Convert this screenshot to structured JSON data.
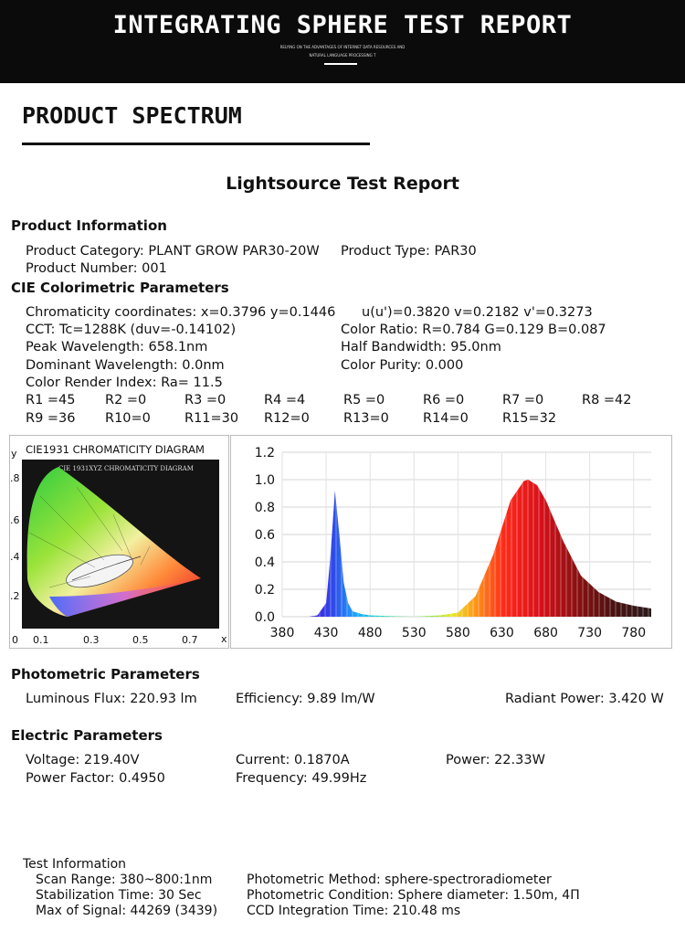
{
  "banner": {
    "title": "INTEGRATING SPHERE TEST REPORT",
    "subtitle_line1": "RELYING ON THE ADVANTAGES OF INTERNET DATA RESOURCES AND",
    "subtitle_line2": "NATURAL LANGUAGE PROCESSING T"
  },
  "section_title": "PRODUCT SPECTRUM",
  "report_title": "Lightsource Test Report",
  "product_info": {
    "heading": "Product Information",
    "category": "Product Category: PLANT GROW PAR30-20W",
    "type": "Product Type: PAR30",
    "number": "Product Number: 001"
  },
  "cie": {
    "heading": "CIE Colorimetric Parameters",
    "chromaticity": "Chromaticity coordinates: x=0.3796 y=0.1446",
    "uv": "u(u')=0.3820 v=0.2182 v'=0.3273",
    "cct": "CCT: Tc=1288K (duv=-0.14102)",
    "color_ratio": "Color Ratio: R=0.784  G=0.129  B=0.087",
    "peak": "Peak Wavelength: 658.1nm",
    "half_bandwidth": "Half Bandwidth: 95.0nm",
    "dominant": "Dominant Wavelength: 0.0nm",
    "purity": "Color Purity: 0.000",
    "cri": "Color Render Index: Ra= 11.5",
    "r_row1": [
      "R1 =45",
      "R2 =0",
      "R3 =0",
      "R4 =4",
      "R5 =0",
      "R6 =0",
      "R7 =0",
      "R8 =42"
    ],
    "r_row2": [
      "R9 =36",
      "R10=0",
      "R11=30",
      "R12=0",
      "R13=0",
      "R14=0",
      "R15=32"
    ]
  },
  "diagram": {
    "label": "CIE1931 CHROMATICITY DIAGRAM",
    "inner_label": "CIE 1931XYZ CHROMATICITY DIAGRAM",
    "y_axis_title": "y",
    "x_axis_title": "x",
    "y_ticks": [
      ".8",
      ".6",
      ".4",
      ".2"
    ],
    "x_ticks": [
      "0",
      "0.1",
      "0.3",
      "0.5",
      "0.7"
    ]
  },
  "chart_data": {
    "type": "area",
    "title": "",
    "xlabel": "",
    "ylabel": "",
    "xlim": [
      380,
      800
    ],
    "ylim": [
      0,
      1.2
    ],
    "x_ticks": [
      380,
      430,
      480,
      530,
      580,
      630,
      680,
      730,
      780
    ],
    "y_ticks": [
      "0.0",
      "0.2",
      "0.4",
      "0.6",
      "0.8",
      "1.0",
      "1.2"
    ],
    "grid": true,
    "series": [
      {
        "x": [
          380,
          410,
          420,
          430,
          435,
          440,
          445,
          450,
          455,
          460,
          470,
          480,
          500,
          530,
          560,
          580,
          600,
          620,
          640,
          655,
          660,
          670,
          680,
          700,
          720,
          740,
          760,
          780,
          800
        ],
        "y": [
          0.0,
          0.0,
          0.01,
          0.1,
          0.45,
          0.92,
          0.6,
          0.25,
          0.1,
          0.04,
          0.02,
          0.01,
          0.005,
          0.0,
          0.01,
          0.03,
          0.15,
          0.45,
          0.85,
          0.99,
          1.0,
          0.96,
          0.85,
          0.55,
          0.3,
          0.18,
          0.11,
          0.08,
          0.06
        ]
      }
    ]
  },
  "photometric": {
    "heading": "Photometric Parameters",
    "flux": "Luminous Flux: 220.93 lm",
    "efficiency": "Efficiency: 9.89 lm/W",
    "radiant": "Radiant Power: 3.420 W"
  },
  "electric": {
    "heading": "Electric Parameters",
    "voltage": "Voltage: 219.40V",
    "current": "Current: 0.1870A",
    "power": "Power: 22.33W",
    "pf": "Power Factor: 0.4950",
    "frequency": "Frequency: 49.99Hz"
  },
  "test_info": {
    "heading": "Test Information",
    "scan": "Scan Range: 380~800:1nm",
    "stabilization": "Stabilization Time: 30 Sec",
    "max_signal": "Max of Signal: 44269 (3439)",
    "method": "Photometric Method: sphere-spectroradiometer",
    "condition": "Photometric Condition: Sphere diameter: 1.50m, 4Π",
    "ccd": "CCD Integration Time: 210.48 ms"
  }
}
